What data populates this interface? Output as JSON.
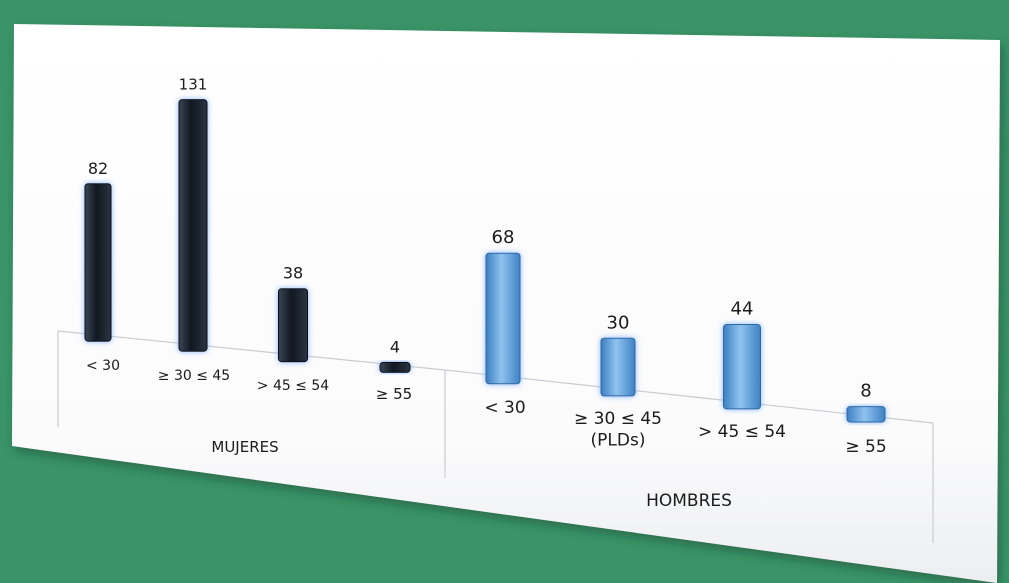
{
  "chart_data": {
    "type": "bar",
    "title": "",
    "xlabel": "",
    "ylabel": "",
    "grid": false,
    "legend": "none",
    "ylim": [
      0,
      140
    ],
    "groups": [
      {
        "name": "MUJERES",
        "color": "#1b2330",
        "categories": [
          "< 30",
          "≥ 30 ≤ 45",
          "> 45 ≤ 54",
          "≥ 55"
        ],
        "values": [
          82,
          131,
          38,
          4
        ]
      },
      {
        "name": "HOMBRES",
        "color": "#5d9fdc",
        "categories": [
          "< 30",
          "≥ 30 ≤ 45\n(PLDs)",
          "> 45 ≤ 54",
          "≥ 55"
        ],
        "values": [
          68,
          30,
          44,
          8
        ]
      }
    ]
  },
  "colors": {
    "background": "#3a9467",
    "panel": "#ffffff",
    "mujeres_bar": "#1b2330",
    "hombres_bar": "#5d9fdc",
    "bar_glow": "#7fb0ff"
  }
}
